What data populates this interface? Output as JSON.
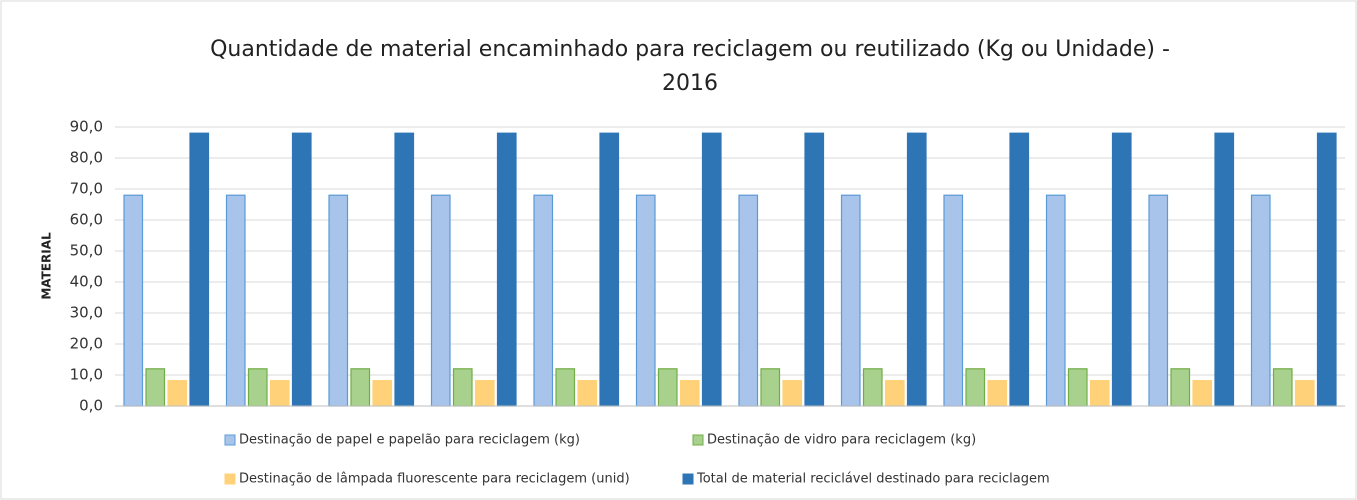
{
  "chart_data": {
    "type": "bar",
    "title": "Quantidade de material encaminhado para reciclagem ou reutilizado (Kg ou Unidade) - 2016",
    "y_label": "MATERIAL",
    "categories": [
      null,
      null,
      null,
      null,
      null,
      null,
      null,
      null,
      null,
      null,
      null,
      null
    ],
    "series": [
      {
        "name": "Destinação de papel e papelão para reciclagem (kg)",
        "color": "#a9c4eb",
        "stroke": "#5b9bd5",
        "values": [
          68,
          68,
          68,
          68,
          68,
          68,
          68,
          68,
          68,
          68,
          68,
          68
        ]
      },
      {
        "name": "Destinação de vidro para reciclagem (kg)",
        "color": "#a9d18e",
        "stroke": "#70ad47",
        "values": [
          12,
          12,
          12,
          12,
          12,
          12,
          12,
          12,
          12,
          12,
          12,
          12
        ]
      },
      {
        "name": "Destinação de lâmpada fluorescente para reciclagem (unid)",
        "color": "#ffd27a",
        "stroke": "#ffd27a",
        "values": [
          8.2,
          8.2,
          8.2,
          8.2,
          8.2,
          8.2,
          8.2,
          8.2,
          8.2,
          8.2,
          8.2,
          8.2
        ]
      },
      {
        "name": "Total de material reciclável destinado para reciclagem",
        "color": "#2e75b6",
        "stroke": "#2e75b6",
        "values": [
          88,
          88,
          88,
          88,
          88,
          88,
          88,
          88,
          88,
          88,
          88,
          88
        ]
      }
    ],
    "ylim": [
      0,
      90
    ],
    "yticks": [
      {
        "value": 0,
        "label": "0,0"
      },
      {
        "value": 10,
        "label": "10,0"
      },
      {
        "value": 20,
        "label": "20,0"
      },
      {
        "value": 30,
        "label": "30,0"
      },
      {
        "value": 40,
        "label": "40,0"
      },
      {
        "value": 50,
        "label": "50,0"
      },
      {
        "value": 60,
        "label": "60,0"
      },
      {
        "value": 70,
        "label": "70,0"
      },
      {
        "value": 80,
        "label": "80,0"
      },
      {
        "value": 90,
        "label": "90,0"
      }
    ],
    "grid": true,
    "legend": "bottom"
  }
}
